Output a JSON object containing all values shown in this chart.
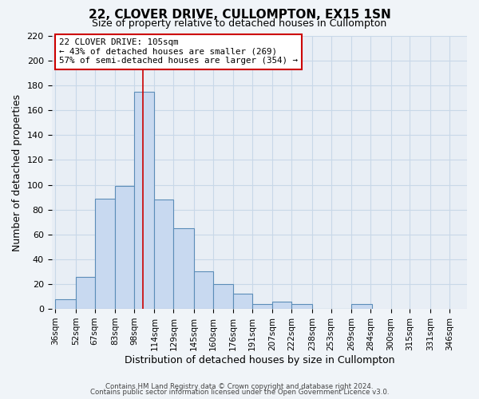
{
  "title": "22, CLOVER DRIVE, CULLOMPTON, EX15 1SN",
  "subtitle": "Size of property relative to detached houses in Cullompton",
  "xlabel": "Distribution of detached houses by size in Cullompton",
  "ylabel": "Number of detached properties",
  "bar_values": [
    8,
    26,
    89,
    99,
    175,
    88,
    65,
    30,
    20,
    12,
    4,
    6,
    4,
    0,
    0,
    4
  ],
  "bin_edges": [
    36,
    52,
    67,
    83,
    98,
    114,
    129,
    145,
    160,
    176,
    191,
    207,
    222,
    238,
    253,
    269,
    285
  ],
  "xtick_positions": [
    36,
    52,
    67,
    83,
    98,
    114,
    129,
    145,
    160,
    176,
    191,
    207,
    222,
    238,
    253,
    269,
    284,
    300,
    315,
    331,
    346
  ],
  "xtick_labels": [
    "36sqm",
    "52sqm",
    "67sqm",
    "83sqm",
    "98sqm",
    "114sqm",
    "129sqm",
    "145sqm",
    "160sqm",
    "176sqm",
    "191sqm",
    "207sqm",
    "222sqm",
    "238sqm",
    "253sqm",
    "269sqm",
    "284sqm",
    "300sqm",
    "315sqm",
    "331sqm",
    "346sqm"
  ],
  "bar_color": "#c8d9f0",
  "bar_edge_color": "#5b8db8",
  "grid_color": "#c8d8e8",
  "background_color": "#e8eef5",
  "fig_background_color": "#f0f4f8",
  "vline_x": 105,
  "vline_color": "#cc0000",
  "annotation_title": "22 CLOVER DRIVE: 105sqm",
  "annotation_line1": "← 43% of detached houses are smaller (269)",
  "annotation_line2": "57% of semi-detached houses are larger (354) →",
  "annotation_box_color": "#ffffff",
  "annotation_edge_color": "#cc0000",
  "ylim": [
    0,
    220
  ],
  "yticks": [
    0,
    20,
    40,
    60,
    80,
    100,
    120,
    140,
    160,
    180,
    200,
    220
  ],
  "footnote1": "Contains HM Land Registry data © Crown copyright and database right 2024.",
  "footnote2": "Contains public sector information licensed under the Open Government Licence v3.0."
}
